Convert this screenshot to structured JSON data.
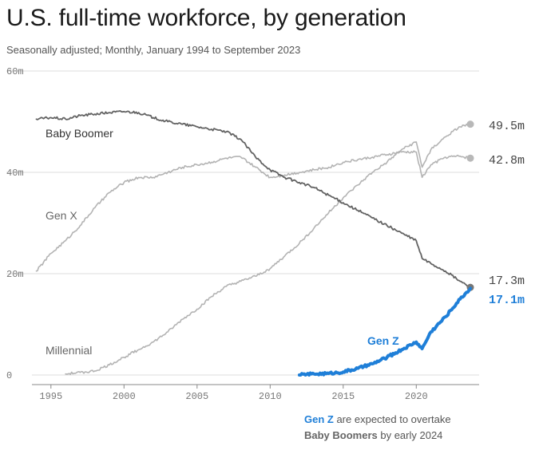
{
  "title": "U.S. full-time workforce, by generation",
  "subtitle": "Seasonally adjusted; Monthly, January 1994 to September 2023",
  "annotation": {
    "highlight": "Gen Z",
    "text1": " are expected to overtake",
    "emphasis": "Baby Boomers",
    "text2": " by early 2024"
  },
  "colors": {
    "boomer": "#636363",
    "genx": "#b3b3b3",
    "millennial": "#b3b3b3",
    "genz": "#1f7fd8",
    "grid": "#dcdcdc",
    "axis": "#888888"
  },
  "chart_data": {
    "type": "line",
    "xlim": [
      1993.7,
      2024.3
    ],
    "ylim": [
      0,
      60
    ],
    "x_ticks": [
      1995,
      2000,
      2005,
      2010,
      2015,
      2020
    ],
    "x_tick_labels": [
      "1995",
      "2000",
      "2005",
      "2010",
      "2015",
      "2020"
    ],
    "y_ticks": [
      0,
      20,
      40,
      60
    ],
    "y_tick_labels": [
      "0",
      "20m",
      "40m",
      "60m"
    ],
    "grid": true,
    "series": [
      {
        "name": "Baby Boomer",
        "end_label": "17.3m",
        "points": [
          [
            1994.0,
            50.5
          ],
          [
            1995,
            50.8
          ],
          [
            1996,
            50.5
          ],
          [
            1997,
            51.2
          ],
          [
            1998,
            51.5
          ],
          [
            1999,
            51.8
          ],
          [
            2000,
            52.0
          ],
          [
            2001,
            51.8
          ],
          [
            2002,
            50.8
          ],
          [
            2003,
            50.0
          ],
          [
            2004,
            49.5
          ],
          [
            2005,
            49.0
          ],
          [
            2006,
            48.5
          ],
          [
            2007,
            48.0
          ],
          [
            2008,
            46.5
          ],
          [
            2009,
            43.0
          ],
          [
            2010,
            40.5
          ],
          [
            2011,
            39.0
          ],
          [
            2012,
            38.0
          ],
          [
            2013,
            37.0
          ],
          [
            2014,
            35.5
          ],
          [
            2015,
            34.0
          ],
          [
            2016,
            32.5
          ],
          [
            2017,
            31.0
          ],
          [
            2018,
            29.5
          ],
          [
            2019,
            28.0
          ],
          [
            2020.0,
            26.5
          ],
          [
            2020.4,
            23.0
          ],
          [
            2021,
            22.0
          ],
          [
            2022,
            20.5
          ],
          [
            2023,
            18.5
          ],
          [
            2023.7,
            17.3
          ]
        ]
      },
      {
        "name": "Gen X",
        "end_label": "42.8m",
        "points": [
          [
            1994.0,
            20.5
          ],
          [
            1995,
            24.0
          ],
          [
            1996,
            26.5
          ],
          [
            1997,
            29.5
          ],
          [
            1998,
            33.0
          ],
          [
            1999,
            36.0
          ],
          [
            2000,
            38.0
          ],
          [
            2001,
            39.0
          ],
          [
            2002,
            39.0
          ],
          [
            2003,
            40.0
          ],
          [
            2004,
            41.0
          ],
          [
            2005,
            41.5
          ],
          [
            2006,
            42.0
          ],
          [
            2007,
            42.8
          ],
          [
            2008,
            43.0
          ],
          [
            2009,
            41.0
          ],
          [
            2010,
            39.0
          ],
          [
            2011,
            39.5
          ],
          [
            2012,
            40.0
          ],
          [
            2013,
            40.5
          ],
          [
            2014,
            41.0
          ],
          [
            2015,
            42.0
          ],
          [
            2016,
            42.5
          ],
          [
            2017,
            43.0
          ],
          [
            2018,
            43.5
          ],
          [
            2019,
            44.0
          ],
          [
            2020.0,
            44.0
          ],
          [
            2020.4,
            39.0
          ],
          [
            2021,
            41.5
          ],
          [
            2022,
            43.0
          ],
          [
            2023,
            43.2
          ],
          [
            2023.7,
            42.8
          ]
        ]
      },
      {
        "name": "Millennial",
        "end_label": "49.5m",
        "points": [
          [
            1996.0,
            0.2
          ],
          [
            1997,
            0.5
          ],
          [
            1998,
            0.8
          ],
          [
            1999,
            2.0
          ],
          [
            2000,
            3.5
          ],
          [
            2001,
            5.0
          ],
          [
            2002,
            6.5
          ],
          [
            2003,
            8.5
          ],
          [
            2004,
            11.0
          ],
          [
            2005,
            13.0
          ],
          [
            2006,
            15.5
          ],
          [
            2007,
            17.5
          ],
          [
            2008,
            18.5
          ],
          [
            2009,
            19.5
          ],
          [
            2010,
            21.0
          ],
          [
            2011,
            23.5
          ],
          [
            2012,
            26.0
          ],
          [
            2013,
            29.0
          ],
          [
            2014,
            32.0
          ],
          [
            2015,
            35.0
          ],
          [
            2016,
            37.5
          ],
          [
            2017,
            40.0
          ],
          [
            2018,
            42.0
          ],
          [
            2019,
            44.5
          ],
          [
            2020.0,
            46.0
          ],
          [
            2020.4,
            41.0
          ],
          [
            2021,
            44.5
          ],
          [
            2022,
            47.0
          ],
          [
            2023,
            49.0
          ],
          [
            2023.7,
            49.5
          ]
        ]
      },
      {
        "name": "Gen Z",
        "end_label": "17.1m",
        "points": [
          [
            2012.0,
            0.0
          ],
          [
            2013,
            0.2
          ],
          [
            2014,
            0.3
          ],
          [
            2015,
            0.6
          ],
          [
            2016,
            1.3
          ],
          [
            2017,
            2.2
          ],
          [
            2018,
            3.5
          ],
          [
            2019,
            5.0
          ],
          [
            2020.0,
            6.5
          ],
          [
            2020.4,
            5.2
          ],
          [
            2021,
            8.5
          ],
          [
            2022,
            11.5
          ],
          [
            2023,
            15.0
          ],
          [
            2023.7,
            17.1
          ]
        ]
      }
    ]
  }
}
